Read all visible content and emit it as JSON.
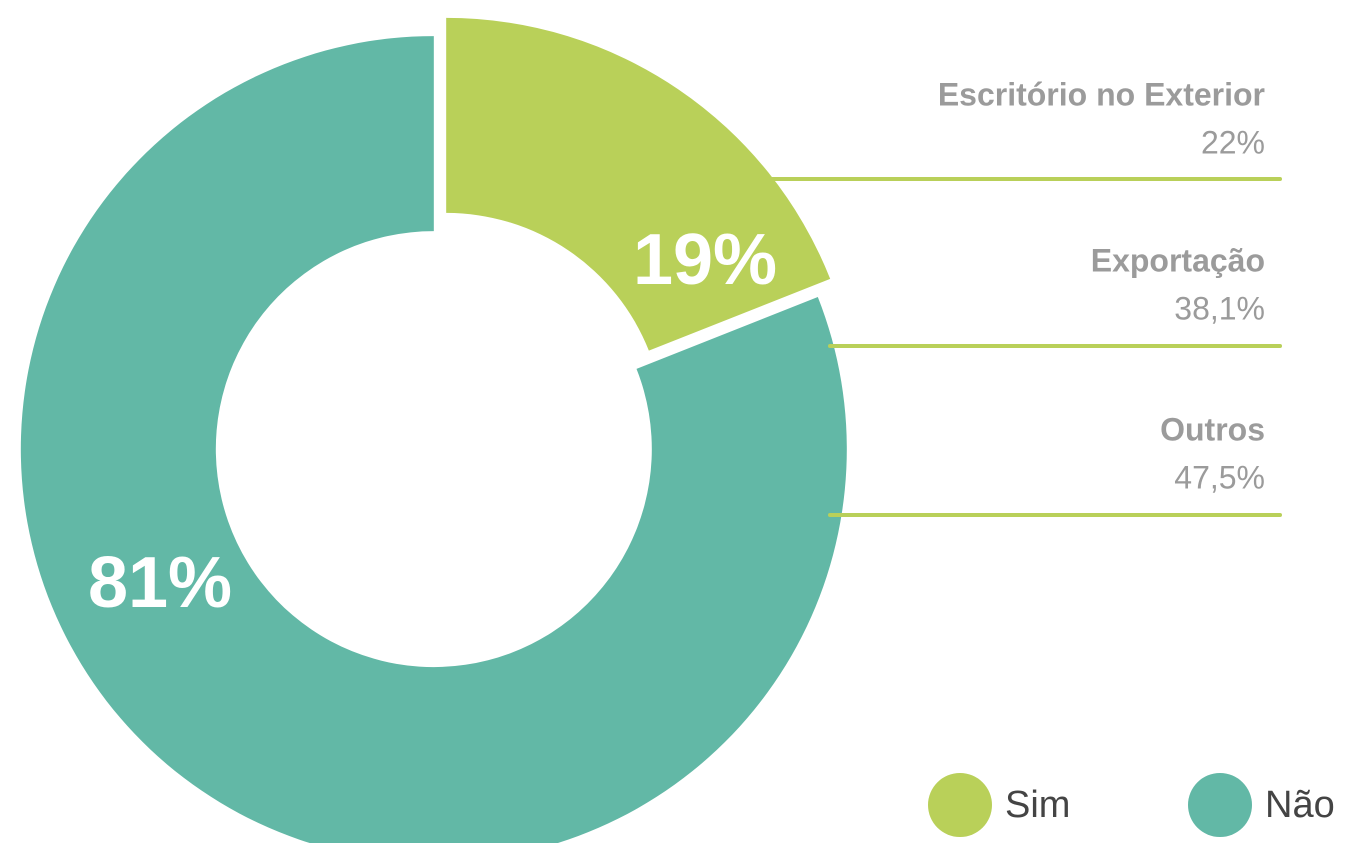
{
  "chart_data": {
    "type": "pie",
    "categories": [
      "Sim",
      "Não"
    ],
    "values": [
      19,
      81
    ],
    "value_labels": [
      "19%",
      "81%"
    ],
    "colors": [
      "#b9d059",
      "#62b8a6"
    ],
    "breakdown": {
      "categories": [
        "Escritório no Exterior",
        "Exportação",
        "Outros"
      ],
      "values": [
        22,
        38.1,
        47.5
      ],
      "value_labels": [
        "22%",
        "38,1%",
        "47,5%"
      ]
    }
  }
}
